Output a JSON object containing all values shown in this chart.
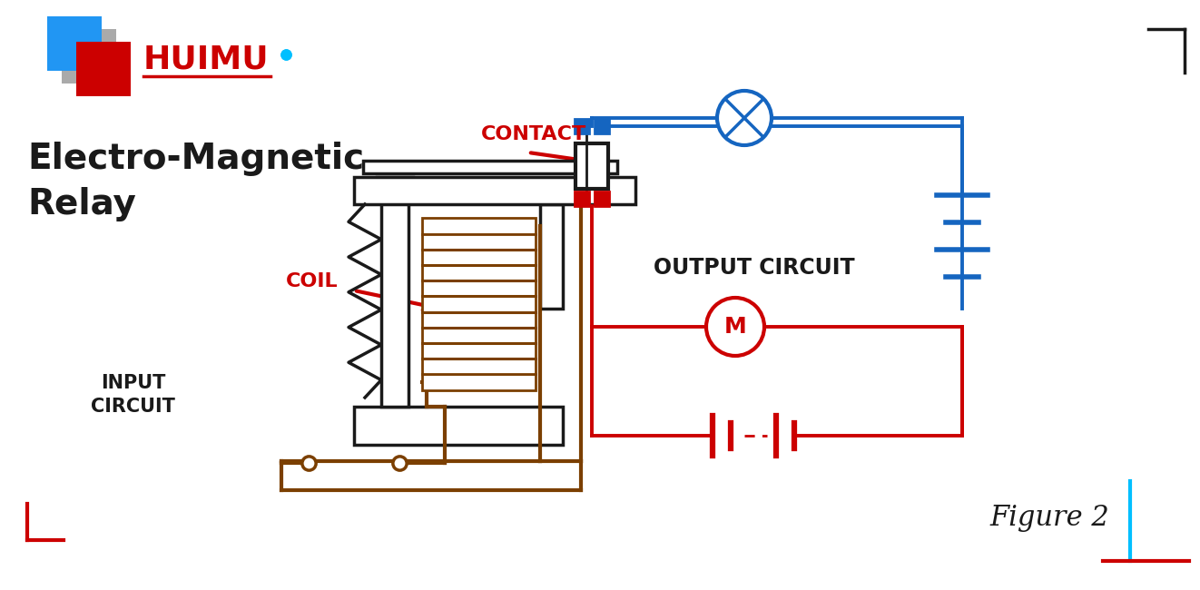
{
  "title_line1": "Electro-Magnetic",
  "title_line2": "Relay",
  "bg_color": "#ffffff",
  "black": "#1a1a1a",
  "red": "#CC0000",
  "dark_red": "#9B0000",
  "blue": "#1565C0",
  "brown": "#7B3F00",
  "cyan": "#00BFFF",
  "light_cyan": "#29B6F6",
  "logo_text": "HUIMU",
  "contact_label": "CONTACT",
  "coil_label": "COIL",
  "input_label": "INPUT\nCIRCUIT",
  "output_label": "OUTPUT CIRCUIT",
  "figure_label": "Figure 2",
  "lw_main": 2.8,
  "lw_thick": 4.0
}
